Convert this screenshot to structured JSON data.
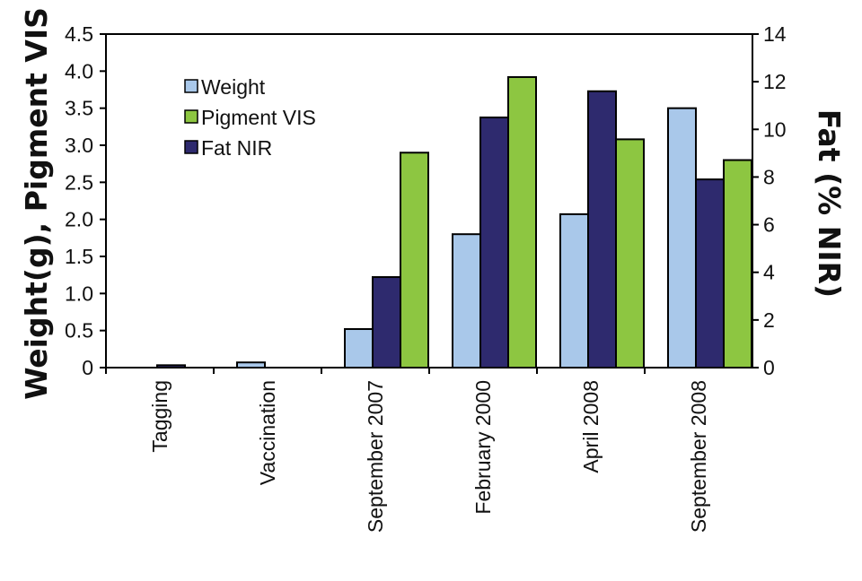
{
  "chart_data": {
    "type": "bar",
    "title": "",
    "ylabel": "Weight(g), Pigment VIS",
    "y2label": "Fat (% NIR)",
    "categories": [
      "Tagging",
      "Vaccination",
      "September 2007",
      "February 2000",
      "April 2008",
      "September 2008"
    ],
    "ylim": [
      0,
      4.5
    ],
    "y_ticks": [
      "0",
      "0.5",
      "1.0",
      "1.5",
      "2.0",
      "2.5",
      "3.0",
      "3.5",
      "4.0",
      "4.5"
    ],
    "y_tick_values": [
      0,
      0.5,
      1.0,
      1.5,
      2.0,
      2.5,
      3.0,
      3.5,
      4.0,
      4.5
    ],
    "y2lim": [
      0,
      14
    ],
    "y2_ticks": [
      "0",
      "2",
      "4",
      "6",
      "8",
      "10",
      "12",
      "14"
    ],
    "y2_tick_values": [
      0,
      2,
      4,
      6,
      8,
      10,
      12,
      14
    ],
    "legend_position": "top-left",
    "grid": false,
    "series": [
      {
        "name": "Weight",
        "axis": "left",
        "color": "#a9c8ea",
        "values": [
          0,
          0.07,
          0.52,
          1.8,
          2.07,
          3.5
        ]
      },
      {
        "name": "Fat NIR",
        "axis": "right",
        "color": "#2e2a6e",
        "values": [
          0.1,
          0,
          3.8,
          10.5,
          11.6,
          7.9
        ]
      },
      {
        "name": "Pigment VIS",
        "axis": "left",
        "color": "#8dc641",
        "values": [
          0,
          0,
          2.9,
          3.92,
          3.08,
          2.8
        ]
      }
    ],
    "legend_order": [
      "Weight",
      "Pigment VIS",
      "Fat NIR"
    ]
  }
}
